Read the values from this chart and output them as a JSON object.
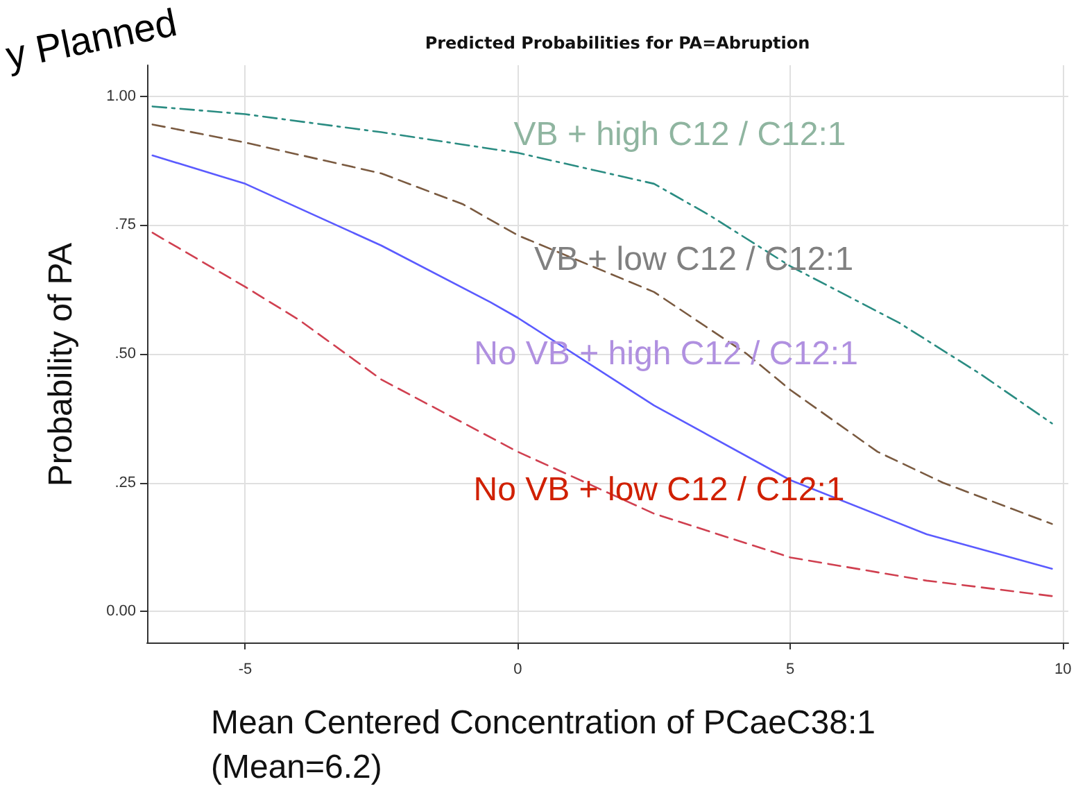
{
  "chart_data": {
    "type": "line",
    "title": "Predicted Probabilities for PA=Abruption",
    "xlabel": "Mean Centered Concentration of PCaeC38:1\n(Mean=6.2)",
    "ylabel": "Probability of PA",
    "xlim": [
      -6.8,
      10.1
    ],
    "xticks": [
      -5,
      0,
      5,
      10
    ],
    "ylim": [
      -0.06,
      1.06
    ],
    "yticks": [
      {
        "value": 0,
        "label": "0.00"
      },
      {
        "value": 0.25,
        "label": ".25"
      },
      {
        "value": 0.5,
        "label": ".50"
      },
      {
        "value": 0.75,
        "label": ".75"
      },
      {
        "value": 1,
        "label": "1.00"
      }
    ],
    "grid": true,
    "marker": "none",
    "series": [
      {
        "color": "#2a8c82",
        "line_style": "dashdot",
        "x": [
          -6.7,
          -5,
          -2.5,
          0,
          2.5,
          3.5,
          5,
          7,
          8.5,
          9.8
        ],
        "values": [
          0.98,
          0.965,
          0.93,
          0.89,
          0.83,
          0.77,
          0.67,
          0.56,
          0.46,
          0.365
        ]
      },
      {
        "color": "#7a5a40",
        "line_style": "dashed",
        "x": [
          -6.7,
          -5,
          -2.5,
          -1,
          0,
          2.5,
          4.2,
          5,
          6.6,
          7.8,
          9.8
        ],
        "values": [
          0.945,
          0.91,
          0.85,
          0.79,
          0.73,
          0.62,
          0.5,
          0.43,
          0.31,
          0.25,
          0.17
        ]
      },
      {
        "color": "#5b5bff",
        "line_style": "solid",
        "x": [
          -6.7,
          -5,
          -2.5,
          -0.5,
          0,
          2.5,
          5,
          7.5,
          9.8
        ],
        "values": [
          0.885,
          0.83,
          0.71,
          0.6,
          0.57,
          0.4,
          0.255,
          0.15,
          0.083
        ]
      },
      {
        "color": "#d04050",
        "line_style": "dashed",
        "x": [
          -6.7,
          -5,
          -4,
          -2.5,
          0,
          2.5,
          5,
          7.5,
          9.8
        ],
        "values": [
          0.735,
          0.63,
          0.565,
          0.45,
          0.31,
          0.19,
          0.105,
          0.06,
          0.03
        ]
      }
    ],
    "annotations": [
      "VB + high C12 / C12:1",
      "VB + low C12 / C12:1",
      "No VB + high C12 / C12:1",
      "No VB + low C12 / C12:1",
      "y Planned"
    ]
  }
}
